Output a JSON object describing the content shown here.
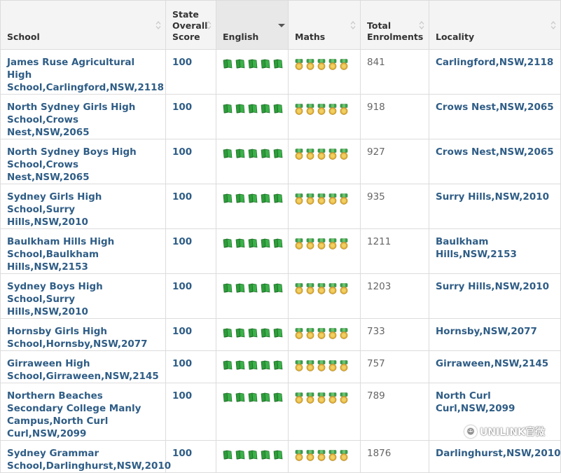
{
  "table": {
    "headers": [
      {
        "label": "School",
        "sort": "both"
      },
      {
        "label": "State Overall Score",
        "sort": "both"
      },
      {
        "label": "English",
        "sort": "desc"
      },
      {
        "label": "Maths",
        "sort": "both"
      },
      {
        "label": "Total Enrolments",
        "sort": "both"
      },
      {
        "label": "Locality",
        "sort": "both"
      }
    ],
    "rows": [
      {
        "school": "James Ruse Agricultural High School,Carlingford,NSW,2118",
        "score": "100",
        "english": 5,
        "maths": 5,
        "enrolments": "841",
        "locality": "Carlingford,NSW,2118"
      },
      {
        "school": "North Sydney Girls High School,Crows Nest,NSW,2065",
        "score": "100",
        "english": 5,
        "maths": 5,
        "enrolments": "918",
        "locality": "Crows Nest,NSW,2065"
      },
      {
        "school": "North Sydney Boys High School,Crows Nest,NSW,2065",
        "score": "100",
        "english": 5,
        "maths": 5,
        "enrolments": "927",
        "locality": "Crows Nest,NSW,2065"
      },
      {
        "school": "Sydney Girls High School,Surry Hills,NSW,2010",
        "score": "100",
        "english": 5,
        "maths": 5,
        "enrolments": "935",
        "locality": "Surry Hills,NSW,2010"
      },
      {
        "school": "Baulkham Hills High School,Baulkham Hills,NSW,2153",
        "score": "100",
        "english": 5,
        "maths": 5,
        "enrolments": "1211",
        "locality": "Baulkham Hills,NSW,2153"
      },
      {
        "school": "Sydney Boys High School,Surry Hills,NSW,2010",
        "score": "100",
        "english": 5,
        "maths": 5,
        "enrolments": "1203",
        "locality": "Surry Hills,NSW,2010"
      },
      {
        "school": "Hornsby Girls High School,Hornsby,NSW,2077",
        "score": "100",
        "english": 5,
        "maths": 5,
        "enrolments": "733",
        "locality": "Hornsby,NSW,2077"
      },
      {
        "school": "Girraween High School,Girraween,NSW,2145",
        "score": "100",
        "english": 5,
        "maths": 5,
        "enrolments": "757",
        "locality": "Girraween,NSW,2145"
      },
      {
        "school": "Northern Beaches Secondary College Manly Campus,North Curl Curl,NSW,2099",
        "score": "100",
        "english": 5,
        "maths": 5,
        "enrolments": "789",
        "locality": "North Curl Curl,NSW,2099"
      },
      {
        "school": "Sydney Grammar School,Darlinghurst,NSW,2010",
        "score": "100",
        "english": 5,
        "maths": 5,
        "enrolments": "1876",
        "locality": "Darlinghurst,NSW,2010"
      }
    ]
  },
  "icons": {
    "english": "book-icon",
    "maths": "medal-icon",
    "sort": "sort-arrows-icon"
  },
  "colors": {
    "link": "#2f5d86",
    "header_bg": "#f4f4f4",
    "sorted_header_bg": "#e8e8e8",
    "book": "#2e9b3a",
    "medal_ribbon": "#3aa14a",
    "medal_gold": "#e2b33a"
  },
  "watermark": {
    "text": "UNILINK官微"
  }
}
